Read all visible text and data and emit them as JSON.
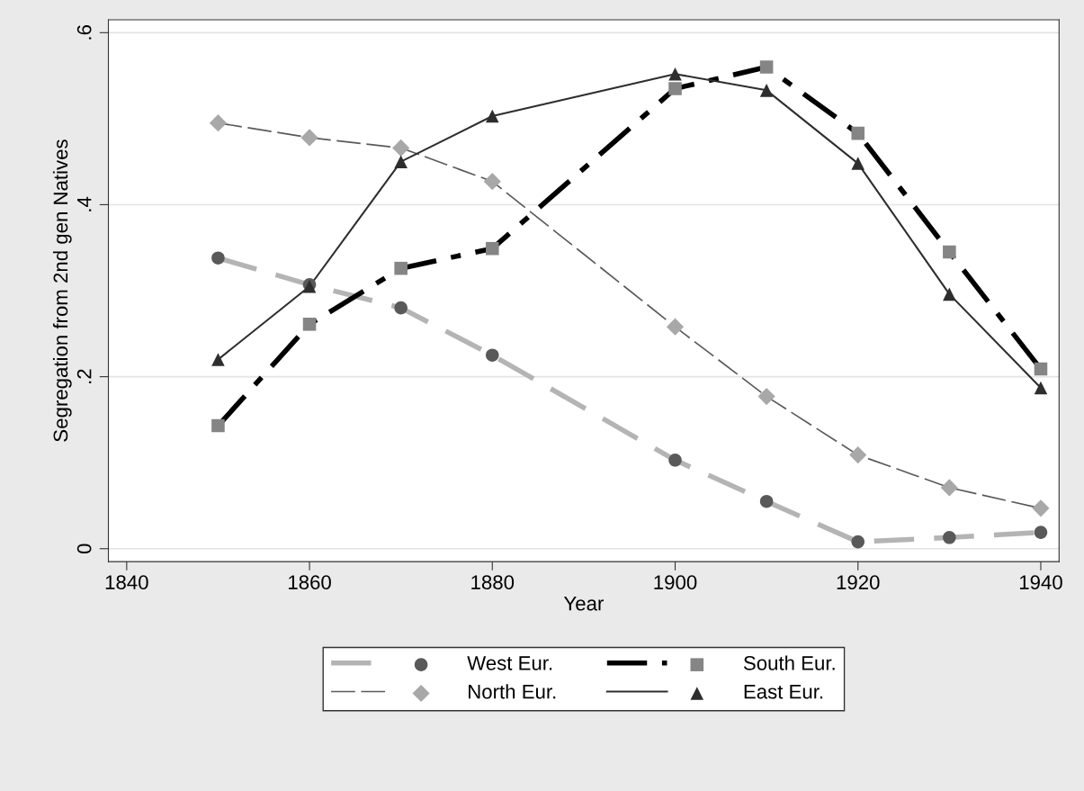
{
  "chart_data": {
    "type": "line",
    "xlabel": "Year",
    "ylabel": "Segregation from 2nd gen Natives",
    "x": [
      1850,
      1860,
      1870,
      1880,
      1900,
      1910,
      1920,
      1930,
      1940
    ],
    "series": [
      {
        "name": "West Eur.",
        "color": "#b4b4b4",
        "colors": [
          "#595959",
          "#595959",
          "#595959",
          "#595959",
          "#595959",
          "#595959",
          "#595959",
          "#595959",
          "#595959"
        ],
        "marker": "circle",
        "line_style": "dashed",
        "values": [
          0.338,
          0.307,
          0.28,
          0.225,
          0.103,
          0.055,
          0.008,
          0.013,
          0.019
        ]
      },
      {
        "name": "North Eur.",
        "color": "#5a5a5a",
        "colors": [
          "#a8a8a8",
          "#a8a8a8",
          "#a8a8a8",
          "#a8a8a8",
          "#a8a8a8",
          "#a8a8a8",
          "#a8a8a8",
          "#a8a8a8",
          "#a8a8a8"
        ],
        "marker": "diamond",
        "line_style": "dashed",
        "values": [
          0.495,
          0.478,
          0.466,
          0.427,
          0.258,
          0.177,
          0.109,
          0.071,
          0.047
        ]
      },
      {
        "name": "South Eur.",
        "color": "#000000",
        "colors": [
          "#858585",
          "#858585",
          "#858585",
          "#858585",
          "#858585",
          "#858585",
          "#858585",
          "#858585",
          "#858585"
        ],
        "marker": "square",
        "line_style": "dashdot",
        "values": [
          0.143,
          0.261,
          0.326,
          0.349,
          0.535,
          0.56,
          0.483,
          0.345,
          0.209
        ]
      },
      {
        "name": "East Eur.",
        "color": "#2e2e2e",
        "colors": [
          "#2e2e2e",
          "#2e2e2e",
          "#2e2e2e",
          "#2e2e2e",
          "#2e2e2e",
          "#2e2e2e",
          "#2e2e2e",
          "#2e2e2e",
          "#2e2e2e"
        ],
        "marker": "triangle",
        "line_style": "solid",
        "values": [
          0.22,
          0.305,
          0.45,
          0.503,
          0.552,
          0.533,
          0.448,
          0.296,
          0.187
        ]
      }
    ],
    "xlim": [
      1838,
      1942
    ],
    "xticks": [
      1840,
      1860,
      1880,
      1900,
      1920,
      1940
    ],
    "ylim": [
      -0.015,
      0.615
    ],
    "yticks": [
      {
        "value": 0,
        "label": "0"
      },
      {
        "value": 0.2,
        "label": ".2"
      },
      {
        "value": 0.4,
        "label": ".4"
      },
      {
        "value": 0.6,
        "label": ".6"
      }
    ],
    "grid": "y",
    "legend": "bottom"
  }
}
